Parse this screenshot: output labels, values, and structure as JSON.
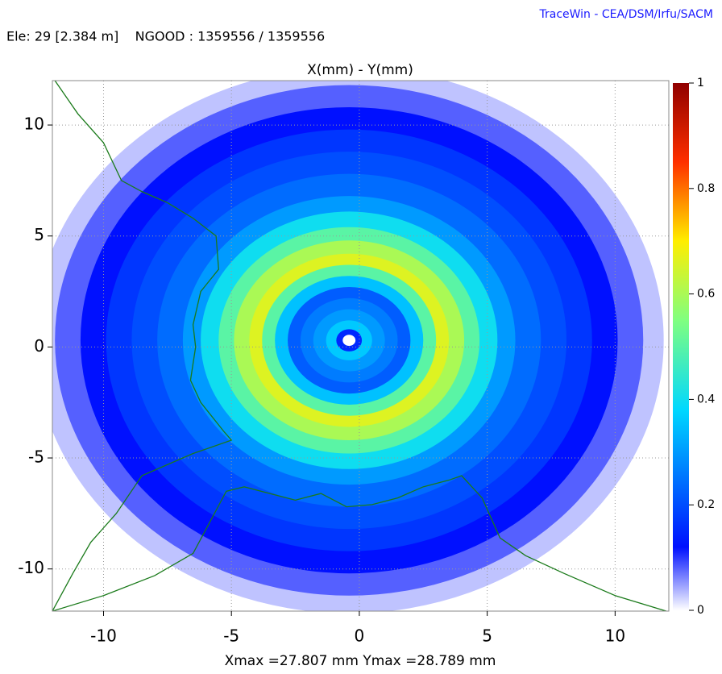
{
  "chart_data": {
    "type": "density",
    "credit": "TraceWin - CEA/DSM/Irfu/SACM",
    "info": "Ele: 29 [2.384 m]    NGOOD : 1359556 / 1359556",
    "title": "X(mm) - Y(mm)",
    "x_label": "Xmax =27.807 mm  Ymax =28.789 mm",
    "xlim": [
      -12,
      12.1
    ],
    "ylim": [
      -11.9,
      12
    ],
    "xticks": [
      -10,
      -5,
      0,
      5,
      10
    ],
    "yticks": [
      -10,
      -5,
      0,
      5,
      10
    ],
    "grid": true,
    "center": [
      -0.4,
      0.3
    ],
    "radius": [
      12.3,
      11.5,
      10.5,
      9.5,
      8.5,
      7.5,
      6.5,
      5.8,
      5.1,
      4.5,
      3.9,
      3.4,
      2.9,
      2.4,
      1.9,
      1.4,
      0.9,
      0.5,
      0.25
    ],
    "density": [
      0.03,
      0.08,
      0.12,
      0.17,
      0.2,
      0.24,
      0.3,
      0.4,
      0.5,
      0.6,
      0.66,
      0.5,
      0.35,
      0.22,
      0.26,
      0.3,
      0.36,
      0.15,
      0
    ],
    "clim": [
      0,
      1
    ],
    "cticks": [
      0,
      0.2,
      0.4,
      0.6,
      0.8,
      1
    ],
    "colorscale": [
      [
        0,
        "#ffffff"
      ],
      [
        0.12,
        "#0010ff"
      ],
      [
        0.38,
        "#00d8ff"
      ],
      [
        0.55,
        "#80ff80"
      ],
      [
        0.7,
        "#ffee00"
      ],
      [
        0.85,
        "#ff3000"
      ],
      [
        1,
        "#900000"
      ]
    ],
    "series": [
      {
        "color": "#1a7a1a",
        "x": [
          -12,
          -10,
          -8,
          -6.5,
          -5.2,
          -4.5,
          -3.5,
          -2.5,
          -1.5,
          -0.5,
          0.5,
          1.5,
          2.5,
          3.5,
          4,
          4.8,
          5.5,
          6.5,
          8,
          10,
          12
        ],
        "values": [
          -11.9,
          -11.2,
          -10.3,
          -9.3,
          -6.5,
          -6.3,
          -6.6,
          -6.9,
          -6.6,
          -7.2,
          -7.1,
          -6.8,
          -6.3,
          -6.0,
          -5.8,
          -6.8,
          -8.6,
          -9.4,
          -10.2,
          -11.2,
          -11.9
        ]
      },
      {
        "color": "#1a7a1a",
        "x": [
          -11.9,
          -11,
          -10,
          -9.3,
          -8.5,
          -7.5,
          -6.5,
          -5.6,
          -5.5,
          -6.2,
          -6.5,
          -6.4,
          -6.6,
          -6.2,
          -5.3,
          -5.0,
          -6.5,
          -8.5,
          -9.5,
          -10.5,
          -11.2,
          -12
        ],
        "values": [
          12,
          10.5,
          9.2,
          7.5,
          7.0,
          6.5,
          5.8,
          5.0,
          3.5,
          2.5,
          1,
          0,
          -1.5,
          -2.5,
          -3.8,
          -4.2,
          -4.8,
          -5.8,
          -7.5,
          -8.8,
          -10.2,
          -11.9
        ]
      }
    ]
  }
}
